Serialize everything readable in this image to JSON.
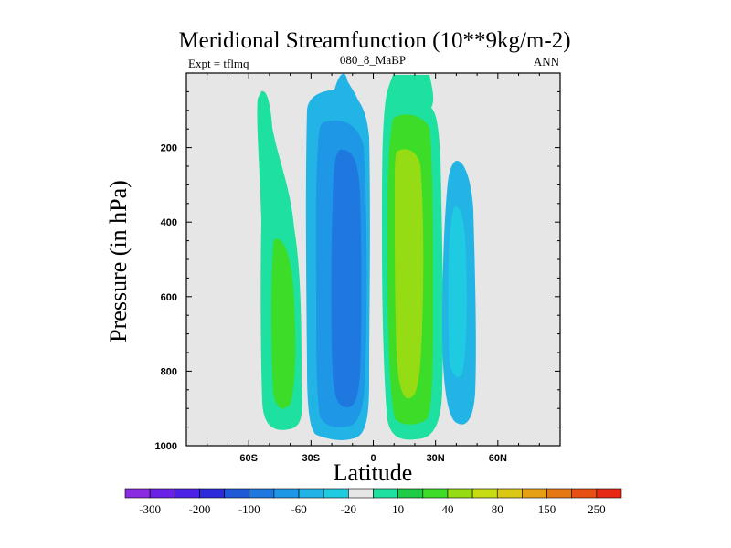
{
  "chart_data": {
    "type": "contour",
    "title": "Meridional Streamfunction (10**9kg/m-2)",
    "subtitle_left": "Expt = tflmq",
    "subtitle_center": "080_8_MaBP",
    "subtitle_right": "ANN",
    "xlabel": "Latitude",
    "ylabel": "Pressure (in hPa)",
    "xlim": [
      -90,
      90
    ],
    "ylim": [
      1000,
      0
    ],
    "x_ticks": [
      {
        "value": -60,
        "label": "60S"
      },
      {
        "value": -30,
        "label": "30S"
      },
      {
        "value": 0,
        "label": "0"
      },
      {
        "value": 30,
        "label": "30N"
      },
      {
        "value": 60,
        "label": "60N"
      }
    ],
    "y_ticks": [
      {
        "value": 200,
        "label": "200"
      },
      {
        "value": 400,
        "label": "400"
      },
      {
        "value": 600,
        "label": "600"
      },
      {
        "value": 800,
        "label": "800"
      },
      {
        "value": 1000,
        "label": "1000"
      }
    ],
    "colorbar": {
      "colors": [
        "#8a2be2",
        "#6a22e6",
        "#4d22e6",
        "#2b2bdc",
        "#1e5ad6",
        "#1e78e0",
        "#1e98e6",
        "#23b4e6",
        "#1fcbe0",
        "#e6e6e6",
        "#1ee0a0",
        "#1ecc46",
        "#3cdc28",
        "#96dc14",
        "#c8dc14",
        "#dcc814",
        "#e6a014",
        "#e67814",
        "#e65014",
        "#e62814"
      ],
      "labels": [
        {
          "text": "-300",
          "boundary": 1
        },
        {
          "text": "-200",
          "boundary": 3
        },
        {
          "text": "-100",
          "boundary": 5
        },
        {
          "text": "-60",
          "boundary": 7
        },
        {
          "text": "-20",
          "boundary": 9
        },
        {
          "text": "10",
          "boundary": 11
        },
        {
          "text": "40",
          "boundary": 13
        },
        {
          "text": "80",
          "boundary": 15
        },
        {
          "text": "150",
          "boundary": 17
        },
        {
          "text": "250",
          "boundary": 19
        }
      ]
    },
    "cells": [
      {
        "name": "sh-outer-cell-positive",
        "center_lat": -45,
        "levels": [
          "10",
          "40"
        ]
      },
      {
        "name": "sh-hadley-cell-negative",
        "center_lat": -15,
        "levels": [
          "-20",
          "-60",
          "-100"
        ]
      },
      {
        "name": "nh-hadley-cell-positive",
        "center_lat": 15,
        "levels": [
          "10",
          "40",
          "80"
        ]
      },
      {
        "name": "nh-outer-cell-negative",
        "center_lat": 40,
        "levels": [
          "-20"
        ]
      }
    ]
  }
}
